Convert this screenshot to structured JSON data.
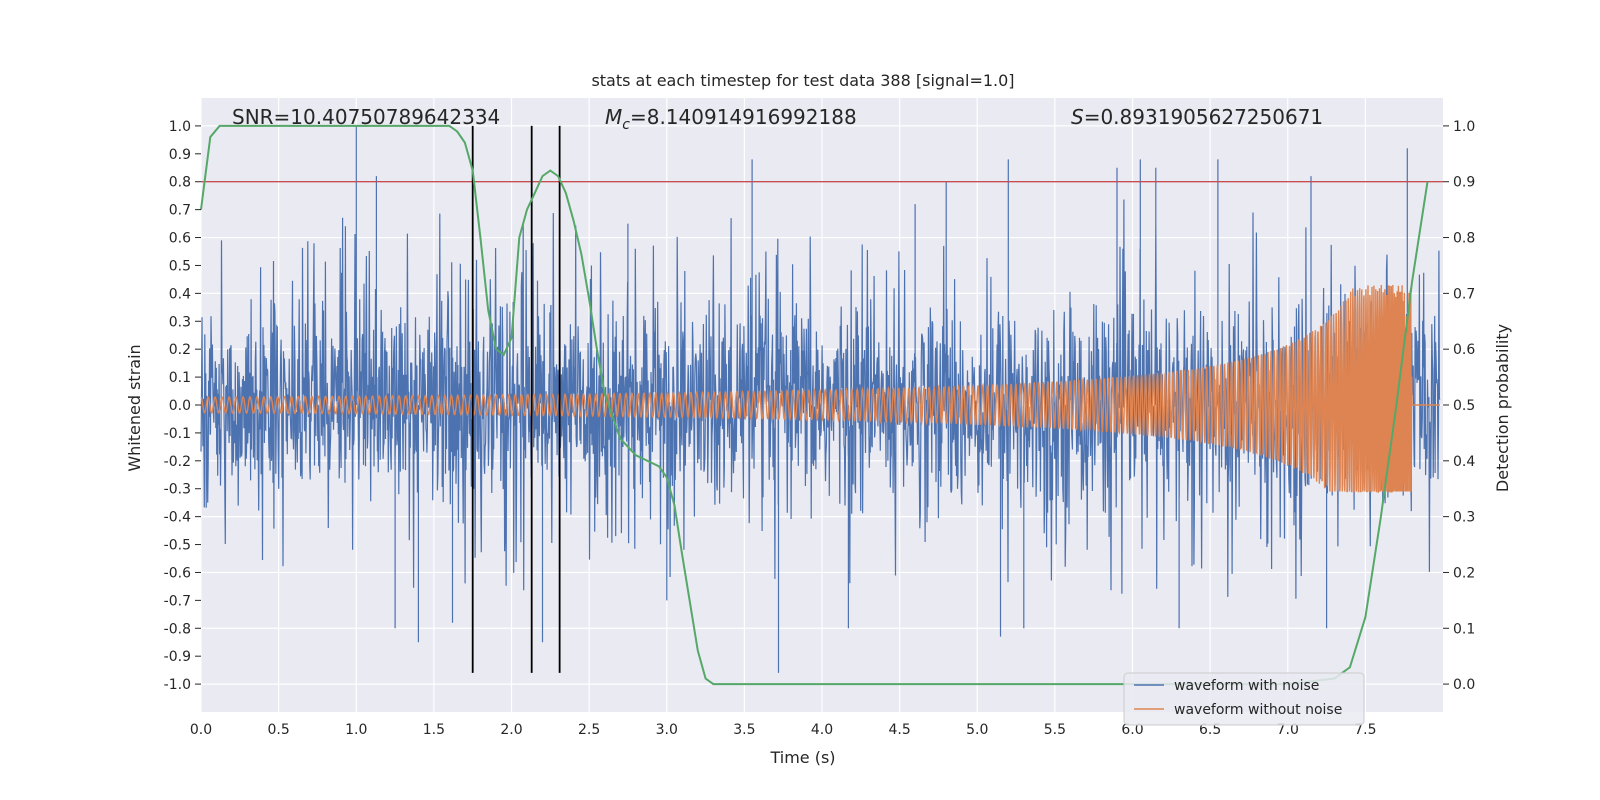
{
  "chart_data": {
    "type": "line",
    "title": "stats at each timestep for test data 388 [signal=1.0]",
    "xlabel": "Time (s)",
    "ylabel_left": "Whitened strain",
    "ylabel_right": "Detection probability",
    "xlim": [
      0.0,
      8.0
    ],
    "ylim_left": [
      -1.1,
      1.1
    ],
    "ylim_right": [
      -0.05,
      1.05
    ],
    "x_ticks": [
      "0.0",
      "0.5",
      "1.0",
      "1.5",
      "2.0",
      "2.5",
      "3.0",
      "3.5",
      "4.0",
      "4.5",
      "5.0",
      "5.5",
      "6.0",
      "6.5",
      "7.0",
      "7.5"
    ],
    "y_ticks_left": [
      "1.0",
      "0.9",
      "0.8",
      "0.7",
      "0.6",
      "0.5",
      "0.4",
      "0.3",
      "0.2",
      "0.1",
      "0.0",
      "-0.1",
      "-0.2",
      "-0.3",
      "-0.4",
      "-0.5",
      "-0.6",
      "-0.7",
      "-0.8",
      "-0.9",
      "-1.0"
    ],
    "y_ticks_right": [
      "1.0",
      "0.9",
      "0.8",
      "0.7",
      "0.6",
      "0.5",
      "0.4",
      "0.3",
      "0.2",
      "0.1",
      "0.0"
    ],
    "grid": true,
    "legend_position": "bottom-right",
    "annotations": {
      "snr": "SNR=10.40750789642334",
      "mc": "=8.140914916992188",
      "s": "=0.8931905627250671"
    },
    "threshold_line": {
      "axis": "right",
      "value": 0.9,
      "color": "#c44e52"
    },
    "vertical_markers": [
      1.75,
      2.13,
      2.31
    ],
    "series": [
      {
        "name": "waveform with noise",
        "axis": "left",
        "color": "#4c72b0",
        "style": "noise",
        "typical_amplitude": 0.35,
        "peaks": [
          [
            1.0,
            1.0
          ],
          [
            1.13,
            0.82
          ],
          [
            3.55,
            0.88
          ],
          [
            4.8,
            0.8
          ],
          [
            5.2,
            0.88
          ],
          [
            5.9,
            0.85
          ],
          [
            6.05,
            0.88
          ],
          [
            6.15,
            0.85
          ],
          [
            6.55,
            0.88
          ],
          [
            7.15,
            0.82
          ],
          [
            7.77,
            0.92
          ],
          [
            2.75,
            0.65
          ],
          [
            4.6,
            0.72
          ]
        ],
        "troughs": [
          [
            1.25,
            -0.8
          ],
          [
            1.4,
            -0.85
          ],
          [
            1.62,
            -0.78
          ],
          [
            1.75,
            -0.75
          ],
          [
            2.2,
            -0.85
          ],
          [
            3.72,
            -0.96
          ],
          [
            4.17,
            -0.8
          ],
          [
            5.15,
            -0.83
          ],
          [
            5.3,
            -0.8
          ],
          [
            6.3,
            -0.8
          ],
          [
            7.25,
            -0.8
          ],
          [
            3.0,
            -0.7
          ]
        ]
      },
      {
        "name": "waveform without noise",
        "axis": "left",
        "color": "#dd8452",
        "style": "chirp",
        "merger_time": 7.8,
        "peak_amplitude": 0.43,
        "min_amplitude": -0.31
      },
      {
        "name": "detection probability",
        "axis": "right",
        "color": "#55a868",
        "x": [
          0.0,
          0.06,
          0.12,
          0.3,
          0.6,
          1.0,
          1.4,
          1.6,
          1.65,
          1.7,
          1.75,
          1.8,
          1.85,
          1.9,
          1.95,
          2.0,
          2.05,
          2.1,
          2.15,
          2.2,
          2.25,
          2.3,
          2.35,
          2.4,
          2.45,
          2.5,
          2.55,
          2.6,
          2.65,
          2.7,
          2.8,
          2.95,
          3.0,
          3.05,
          3.1,
          3.2,
          3.25,
          3.3,
          3.5,
          4.0,
          5.0,
          6.0,
          7.0,
          7.3,
          7.4,
          7.5,
          7.6,
          7.7,
          7.8,
          7.9
        ],
        "values": [
          0.85,
          0.98,
          1.0,
          1.0,
          1.0,
          1.0,
          1.0,
          1.0,
          0.99,
          0.97,
          0.92,
          0.8,
          0.67,
          0.6,
          0.59,
          0.62,
          0.8,
          0.85,
          0.88,
          0.91,
          0.92,
          0.91,
          0.88,
          0.83,
          0.77,
          0.69,
          0.6,
          0.52,
          0.48,
          0.44,
          0.41,
          0.39,
          0.37,
          0.32,
          0.23,
          0.06,
          0.01,
          0.0,
          0.0,
          0.0,
          0.0,
          0.0,
          0.0,
          0.01,
          0.03,
          0.12,
          0.3,
          0.5,
          0.72,
          0.9
        ]
      }
    ]
  }
}
